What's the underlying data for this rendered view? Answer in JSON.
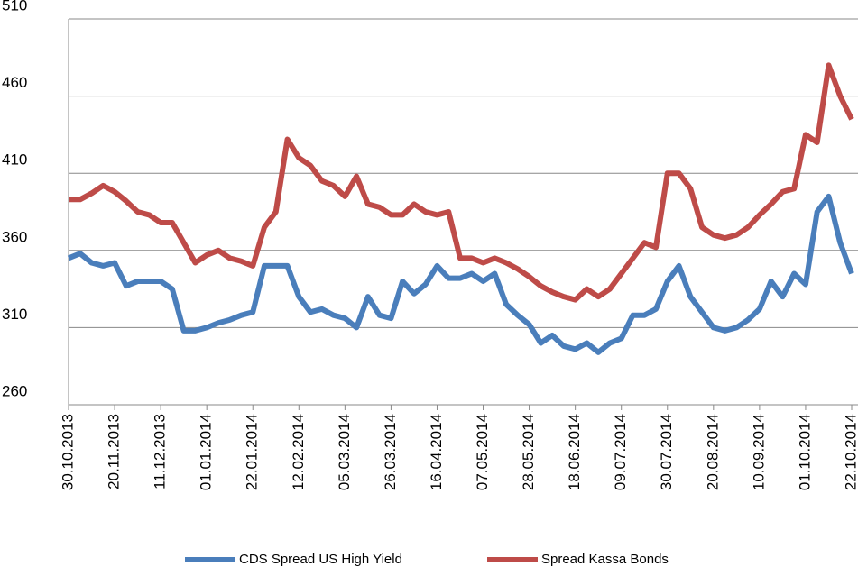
{
  "chart_data": {
    "type": "line",
    "categories": [
      "30.10.2013",
      null,
      null,
      null,
      "20.11.2013",
      null,
      null,
      null,
      "11.12.2013",
      null,
      null,
      null,
      "01.01.2014",
      null,
      null,
      null,
      "22.01.2014",
      null,
      null,
      null,
      "12.02.2014",
      null,
      null,
      null,
      "05.03.2014",
      null,
      null,
      null,
      "26.03.2014",
      null,
      null,
      null,
      "16.04.2014",
      null,
      null,
      null,
      "07.05.2014",
      null,
      null,
      null,
      "28.05.2014",
      null,
      null,
      null,
      "18.06.2014",
      null,
      null,
      null,
      "09.07.2014",
      null,
      null,
      null,
      "30.07.2014",
      null,
      null,
      null,
      "20.08.2014",
      null,
      null,
      null,
      "10.09.2014",
      null,
      null,
      null,
      "01.10.2014",
      null,
      null,
      null,
      "22.10.2014"
    ],
    "series": [
      {
        "name": "CDS Spread US High Yield",
        "color": "#4a7ebb",
        "values": [
          355,
          358,
          352,
          350,
          352,
          337,
          340,
          340,
          340,
          335,
          308,
          308,
          310,
          313,
          315,
          318,
          320,
          350,
          350,
          350,
          330,
          320,
          322,
          318,
          316,
          310,
          330,
          318,
          316,
          340,
          332,
          338,
          350,
          342,
          342,
          345,
          340,
          345,
          325,
          318,
          312,
          300,
          305,
          298,
          296,
          300,
          294,
          300,
          303,
          318,
          318,
          322,
          340,
          350,
          330,
          320,
          310,
          308,
          310,
          315,
          322,
          340,
          330,
          345,
          338,
          385,
          395,
          365,
          345
        ]
      },
      {
        "name": "Spread Kassa Bonds",
        "color": "#be4b48",
        "values": [
          393,
          393,
          397,
          402,
          398,
          392,
          385,
          383,
          378,
          378,
          365,
          352,
          357,
          360,
          355,
          353,
          350,
          375,
          385,
          432,
          420,
          415,
          405,
          402,
          395,
          408,
          390,
          388,
          383,
          383,
          390,
          385,
          383,
          385,
          355,
          355,
          352,
          355,
          352,
          348,
          343,
          337,
          333,
          330,
          328,
          335,
          330,
          335,
          345,
          355,
          365,
          362,
          410,
          410,
          400,
          375,
          370,
          368,
          370,
          375,
          383,
          390,
          398,
          400,
          435,
          430,
          480,
          460,
          445
        ]
      }
    ],
    "ylim": [
      260,
      510
    ],
    "yticks": [
      260,
      310,
      360,
      410,
      460,
      510
    ],
    "grid": true
  }
}
